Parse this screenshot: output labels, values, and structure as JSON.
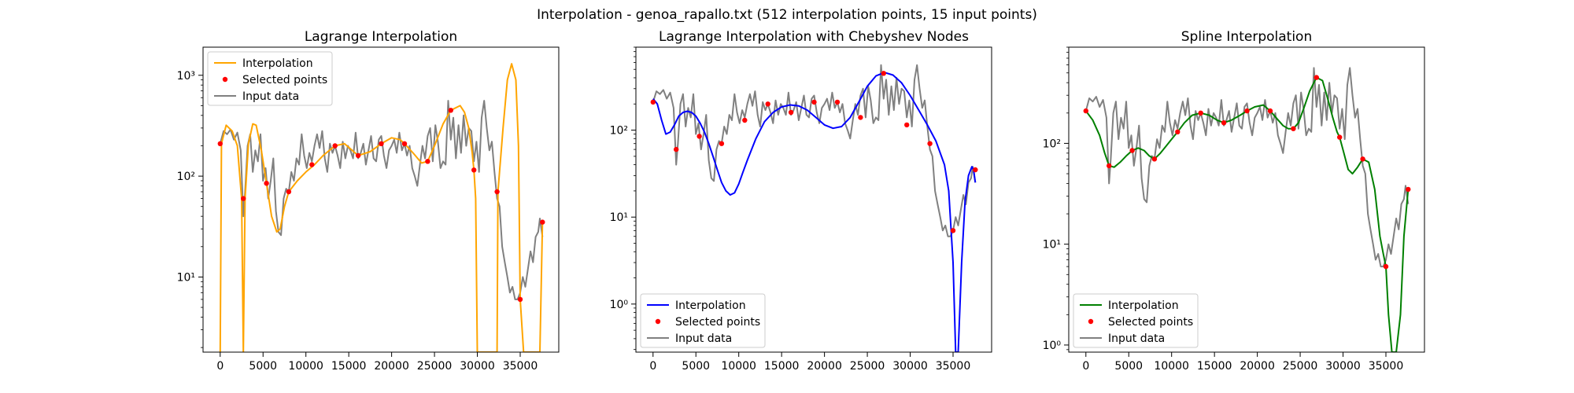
{
  "suptitle": "Interpolation - genoa_rapallo.txt (512 interpolation points, 15 input points)",
  "legend_labels": {
    "interp": "Interpolation",
    "points": "Selected points",
    "input": "Input data"
  },
  "colors": {
    "lagrange": "#ffa500",
    "chebyshev": "#0000ff",
    "spline": "#008000",
    "points": "#ff0000",
    "input": "#808080"
  },
  "chart_data": [
    {
      "type": "line",
      "title": "Lagrange Interpolation",
      "xlabel": "",
      "ylabel": "",
      "yscale": "log",
      "xlim": [
        -2000,
        39500
      ],
      "ylim": [
        1.8,
        1900
      ],
      "xticks": [
        0,
        5000,
        10000,
        15000,
        20000,
        25000,
        30000,
        35000
      ],
      "yticks": [
        {
          "v": 10,
          "label": "10¹"
        },
        {
          "v": 100,
          "label": "10²"
        },
        {
          "v": 1000,
          "label": "10³"
        }
      ],
      "legend_position": "upper-left",
      "input_series": {
        "x": [
          0,
          400,
          800,
          1200,
          1600,
          2000,
          2400,
          2700,
          2900,
          3200,
          3500,
          3800,
          4100,
          4400,
          4700,
          5000,
          5300,
          5600,
          5900,
          6200,
          6500,
          6800,
          7100,
          7400,
          7700,
          8000,
          8300,
          8600,
          8900,
          9200,
          9500,
          9800,
          10100,
          10400,
          10700,
          11000,
          11300,
          11600,
          11900,
          12200,
          12500,
          12800,
          13100,
          13400,
          13700,
          14000,
          14300,
          14600,
          14900,
          15200,
          15500,
          15800,
          16100,
          16400,
          16700,
          17000,
          17300,
          17600,
          17900,
          18200,
          18500,
          18800,
          19100,
          19400,
          19700,
          20000,
          20300,
          20600,
          20900,
          21200,
          21500,
          21800,
          22100,
          22400,
          22700,
          23000,
          23300,
          23600,
          23900,
          24200,
          24500,
          24800,
          25100,
          25400,
          25700,
          26000,
          26300,
          26600,
          26900,
          27200,
          27500,
          27800,
          28100,
          28400,
          28700,
          29000,
          29300,
          29600,
          29900,
          30200,
          30500,
          30800,
          31100,
          31400,
          31700,
          32000,
          32300,
          32600,
          32900,
          33200,
          33500,
          33800,
          34100,
          34400,
          34700,
          35000,
          35300,
          35600,
          35900,
          36200,
          36500,
          36800,
          37100,
          37300,
          37600
        ],
        "y": [
          210,
          280,
          260,
          290,
          230,
          270,
          180,
          40,
          70,
          200,
          260,
          110,
          180,
          140,
          260,
          90,
          120,
          60,
          90,
          150,
          45,
          28,
          26,
          60,
          75,
          70,
          110,
          90,
          150,
          130,
          260,
          160,
          120,
          170,
          140,
          200,
          260,
          190,
          280,
          150,
          110,
          210,
          170,
          200,
          160,
          120,
          220,
          150,
          200,
          180,
          150,
          270,
          150,
          170,
          210,
          130,
          180,
          250,
          150,
          140,
          230,
          250,
          160,
          120,
          180,
          200,
          230,
          170,
          270,
          180,
          210,
          160,
          200,
          120,
          100,
          80,
          130,
          200,
          150,
          250,
          300,
          140,
          320,
          220,
          120,
          140,
          130,
          560,
          230,
          380,
          150,
          320,
          170,
          400,
          200,
          300,
          280,
          140,
          220,
          110,
          380,
          560,
          300,
          180,
          220,
          110,
          60,
          50,
          20,
          14,
          10,
          7,
          8,
          6,
          6,
          7,
          10,
          8,
          12,
          18,
          14,
          25,
          28,
          38,
          25
        ]
      },
      "points": {
        "x": [
          0,
          2700,
          5400,
          8000,
          10700,
          13400,
          16100,
          18800,
          21500,
          24200,
          26900,
          29600,
          32300,
          35000,
          37600
        ],
        "y": [
          210,
          60,
          85,
          70,
          130,
          200,
          160,
          210,
          210,
          140,
          450,
          115,
          70,
          6,
          35
        ]
      },
      "interp_series": {
        "x": [
          0,
          150,
          700,
          1400,
          2000,
          2500,
          2700,
          2900,
          3300,
          3800,
          4200,
          4800,
          5400,
          6000,
          6600,
          7000,
          7500,
          8000,
          9000,
          10000,
          11000,
          12000,
          13400,
          14500,
          16100,
          17500,
          18800,
          20000,
          21000,
          21500,
          22500,
          23500,
          24200,
          25000,
          26000,
          26900,
          28000,
          28500,
          29000,
          29400,
          29600,
          29800,
          30000,
          32300,
          32400,
          33000,
          33500,
          34000,
          34500,
          34800,
          35000,
          35400,
          36000,
          36500,
          37000,
          37300,
          37600
        ],
        "y": [
          1.8,
          210,
          320,
          280,
          200,
          60,
          1.8,
          60,
          210,
          330,
          320,
          180,
          85,
          40,
          28,
          30,
          50,
          70,
          90,
          110,
          130,
          160,
          200,
          210,
          160,
          175,
          210,
          240,
          230,
          210,
          170,
          135,
          140,
          200,
          330,
          450,
          500,
          430,
          300,
          170,
          115,
          60,
          1.8,
          1.8,
          70,
          300,
          900,
          1300,
          900,
          200,
          6,
          1.8,
          1.8,
          1.8,
          1.8,
          1.8,
          35
        ]
      }
    },
    {
      "type": "line",
      "title": "Lagrange Interpolation with Chebyshev Nodes",
      "xlabel": "",
      "ylabel": "",
      "yscale": "log",
      "xlim": [
        -2000,
        39500
      ],
      "ylim": [
        0.28,
        900
      ],
      "xticks": [
        0,
        5000,
        10000,
        15000,
        20000,
        25000,
        30000,
        35000
      ],
      "yticks": [
        {
          "v": 1,
          "label": "10⁰"
        },
        {
          "v": 10,
          "label": "10¹"
        },
        {
          "v": 100,
          "label": "10²"
        }
      ],
      "legend_position": "lower-left",
      "input_series_ref": 0,
      "points": {
        "x": [
          0,
          2700,
          5400,
          8000,
          10700,
          13400,
          16100,
          18800,
          21500,
          24200,
          26900,
          29600,
          32300,
          35000,
          37600
        ],
        "y": [
          210,
          60,
          85,
          70,
          130,
          200,
          160,
          210,
          210,
          140,
          450,
          115,
          70,
          7,
          35
        ]
      },
      "interp_series": {
        "x": [
          0,
          500,
          1000,
          1500,
          2000,
          2500,
          3000,
          3500,
          4000,
          4500,
          5000,
          5500,
          6000,
          6500,
          7000,
          7500,
          8000,
          8500,
          9000,
          9500,
          10000,
          10500,
          11000,
          12000,
          13000,
          14000,
          15000,
          16000,
          17000,
          18000,
          19000,
          20000,
          21000,
          22000,
          23000,
          24000,
          25000,
          26000,
          27000,
          28000,
          29000,
          30000,
          31000,
          32000,
          33000,
          34000,
          34500,
          35000,
          35300,
          35600,
          36000,
          36400,
          36800,
          37200,
          37400,
          37600
        ],
        "y": [
          230,
          200,
          130,
          90,
          95,
          115,
          145,
          160,
          165,
          160,
          145,
          120,
          95,
          70,
          50,
          35,
          25,
          20,
          18,
          19,
          24,
          33,
          45,
          80,
          125,
          160,
          185,
          195,
          190,
          170,
          140,
          115,
          105,
          110,
          140,
          210,
          320,
          420,
          460,
          430,
          350,
          250,
          170,
          115,
          75,
          40,
          20,
          3,
          0.28,
          0.28,
          3,
          15,
          30,
          38,
          35,
          25
        ]
      }
    },
    {
      "type": "line",
      "title": "Spline Interpolation",
      "xlabel": "",
      "ylabel": "",
      "yscale": "log",
      "xlim": [
        -2000,
        39500
      ],
      "ylim": [
        0.85,
        900
      ],
      "xticks": [
        0,
        5000,
        10000,
        15000,
        20000,
        25000,
        30000,
        35000
      ],
      "yticks": [
        {
          "v": 1,
          "label": "10⁰"
        },
        {
          "v": 10,
          "label": "10¹"
        },
        {
          "v": 100,
          "label": "10²"
        }
      ],
      "legend_position": "lower-left",
      "input_series_ref": 0,
      "points": {
        "x": [
          0,
          2700,
          5400,
          8000,
          10700,
          13400,
          16100,
          18800,
          21500,
          24200,
          26900,
          29600,
          32300,
          35000,
          37600
        ],
        "y": [
          210,
          60,
          85,
          70,
          130,
          200,
          160,
          210,
          210,
          140,
          450,
          115,
          70,
          6,
          35
        ]
      },
      "interp_series": {
        "x": [
          0,
          800,
          1600,
          2200,
          2700,
          3300,
          4000,
          4700,
          5400,
          6100,
          6800,
          7400,
          8000,
          8700,
          9400,
          10000,
          10700,
          11500,
          12400,
          13400,
          14400,
          15300,
          16100,
          17000,
          18000,
          18800,
          19700,
          20700,
          21500,
          22300,
          23000,
          23600,
          24200,
          24800,
          25400,
          26100,
          26900,
          27600,
          28200,
          28800,
          29300,
          29600,
          30100,
          30600,
          31100,
          31700,
          32300,
          33000,
          33700,
          34300,
          34700,
          35000,
          35300,
          35700,
          36200,
          36700,
          37100,
          37600
        ],
        "y": [
          210,
          170,
          120,
          80,
          60,
          58,
          65,
          75,
          85,
          90,
          85,
          75,
          70,
          80,
          95,
          110,
          130,
          160,
          190,
          200,
          190,
          170,
          160,
          170,
          190,
          210,
          230,
          240,
          210,
          175,
          150,
          140,
          140,
          160,
          220,
          330,
          450,
          420,
          280,
          180,
          130,
          115,
          80,
          55,
          50,
          58,
          70,
          65,
          35,
          12,
          8,
          6,
          2,
          0.85,
          0.85,
          2,
          12,
          35
        ]
      }
    }
  ]
}
